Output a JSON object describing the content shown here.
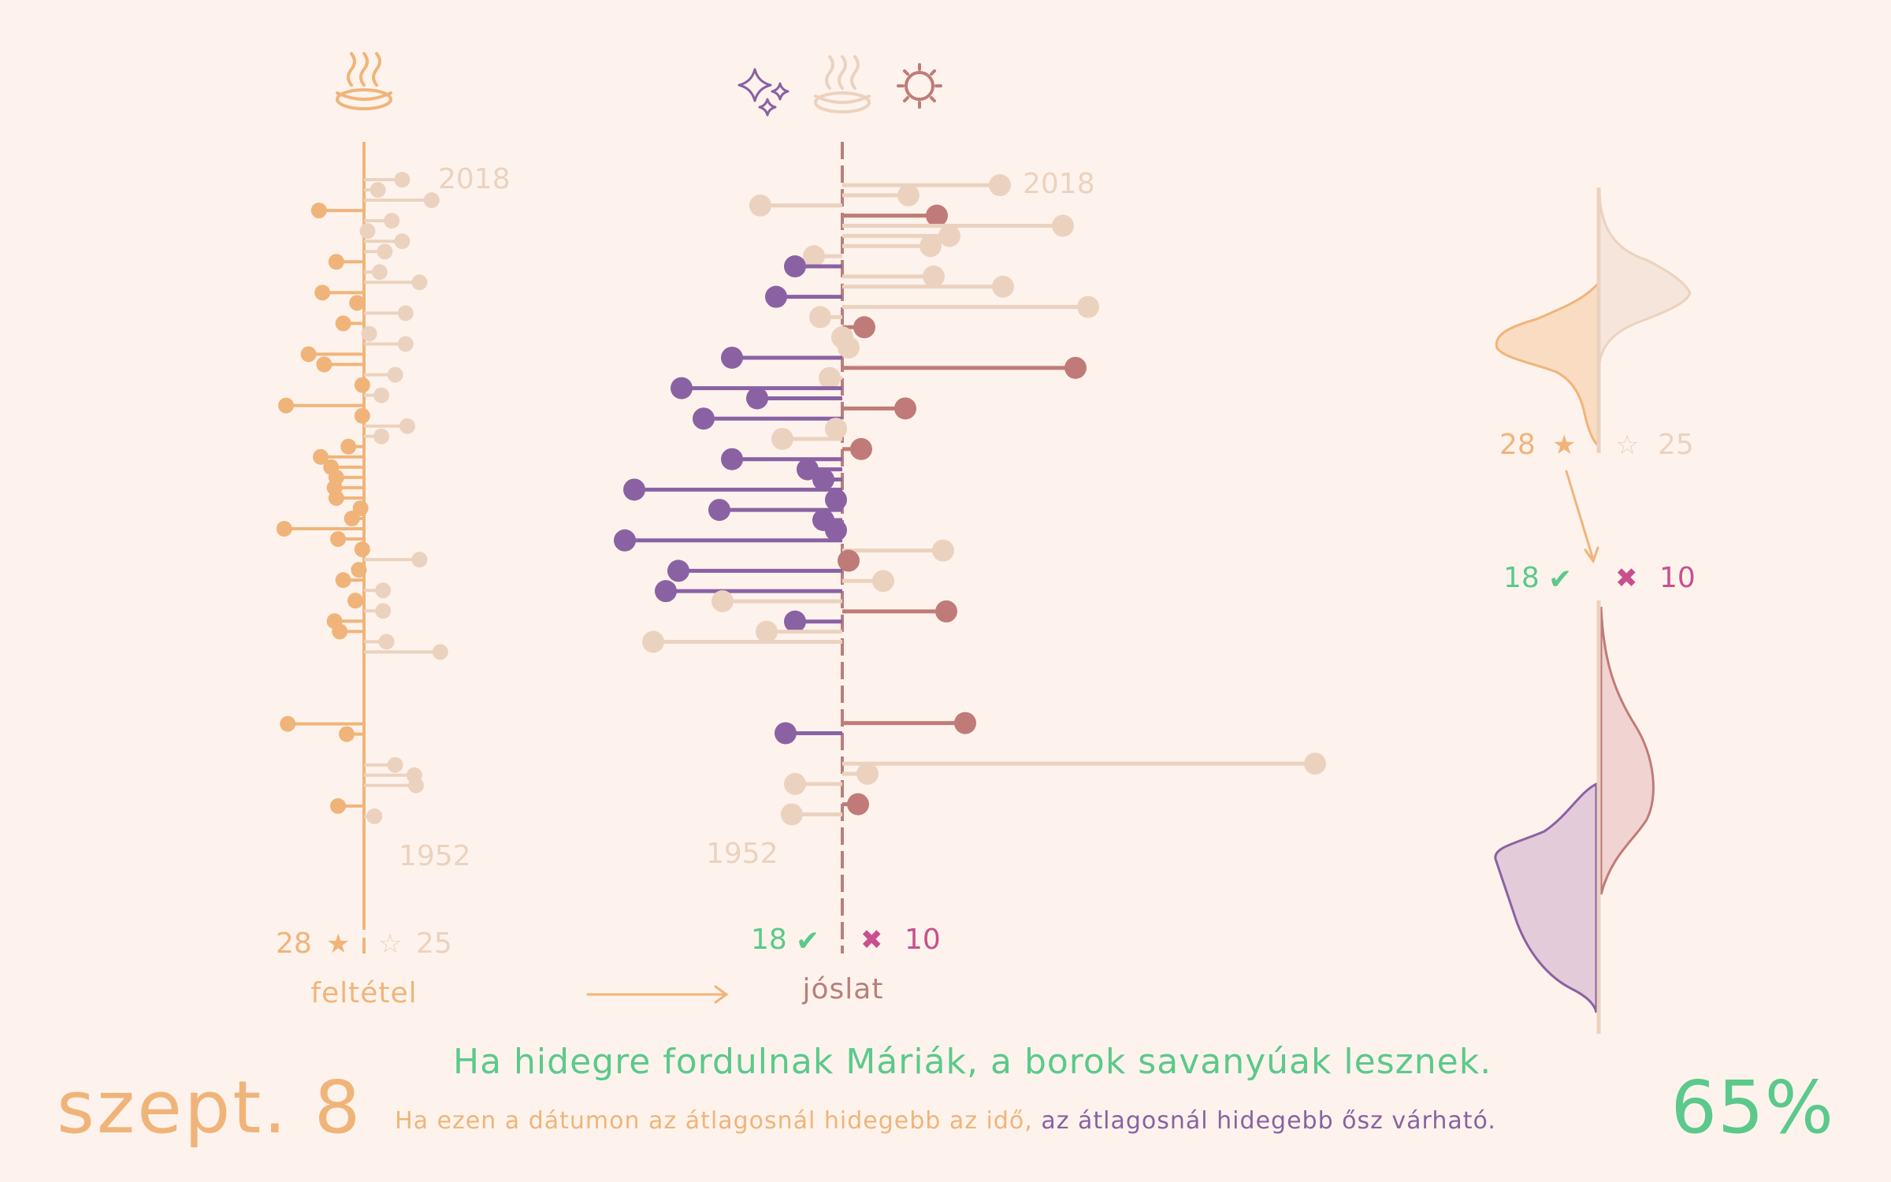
{
  "date": "szept. 8",
  "percent": "65%",
  "saying": "Ha hidegre fordulnak Máriák, a borok savanyúak lesznek.",
  "explanation": {
    "condition": "Ha ezen a dátumon az átlagosnál hidegebb az idő,",
    "result": "az átlagosnál hidegebb ősz várható."
  },
  "labels": {
    "condition": "feltétel",
    "prediction": "jóslat"
  },
  "stats": {
    "cond_yes": "28",
    "cond_no": "25",
    "correct": "18",
    "wrong": "10",
    "star_filled": "★",
    "star_empty": "☆",
    "check": "✔",
    "cross": "✖"
  },
  "year_labels": {
    "top": "2018",
    "bottom": "1952"
  },
  "icons": [
    "steaming-bowl-icon",
    "sparkles-icon",
    "steaming-bowl-icon",
    "sun-icon"
  ],
  "colors": {
    "background": "#fdf3ec",
    "condition": "#f0b47a",
    "condition_faded": "#ebd2bf",
    "cold": "#8a62a3",
    "warm": "#c07b78",
    "correct": "#5bc98b",
    "wrong": "#c94f8e",
    "axis_pred": "#b87f7c"
  },
  "chart_data": [
    {
      "type": "lollipop",
      "name": "feltétel",
      "x_unit": "temperature anomaly (value 0 = average)",
      "y_range": [
        1952,
        2018
      ],
      "x_range": [
        -6,
        6
      ],
      "points": [
        {
          "year": 2018,
          "value": 2.2
        },
        {
          "year": 2017,
          "value": 0.8
        },
        {
          "year": 2016,
          "value": 3.9
        },
        {
          "year": 2015,
          "value": -2.6
        },
        {
          "year": 2014,
          "value": 1.6
        },
        {
          "year": 2013,
          "value": 0.2
        },
        {
          "year": 2012,
          "value": 2.2
        },
        {
          "year": 2011,
          "value": 1.2
        },
        {
          "year": 2010,
          "value": -1.6
        },
        {
          "year": 2009,
          "value": 0.9
        },
        {
          "year": 2008,
          "value": 3.2
        },
        {
          "year": 2007,
          "value": -2.4
        },
        {
          "year": 2006,
          "value": -0.4
        },
        {
          "year": 2005,
          "value": 2.4
        },
        {
          "year": 2004,
          "value": -1.2
        },
        {
          "year": 2003,
          "value": 0.3
        },
        {
          "year": 2002,
          "value": 2.4
        },
        {
          "year": 2001,
          "value": -3.2
        },
        {
          "year": 2000,
          "value": -2.3
        },
        {
          "year": 1999,
          "value": 1.8
        },
        {
          "year": 1998,
          "value": -0.1
        },
        {
          "year": 1997,
          "value": 1.0
        },
        {
          "year": 1996,
          "value": -4.5
        },
        {
          "year": 1995,
          "value": -0.1
        },
        {
          "year": 1994,
          "value": 2.5
        },
        {
          "year": 1993,
          "value": 1.0
        },
        {
          "year": 1992,
          "value": -0.9
        },
        {
          "year": 1991,
          "value": -2.5
        },
        {
          "year": 1990,
          "value": -1.9
        },
        {
          "year": 1989,
          "value": -1.6
        },
        {
          "year": 1988,
          "value": -1.7
        },
        {
          "year": 1987,
          "value": -1.6
        },
        {
          "year": 1986,
          "value": -0.2
        },
        {
          "year": 1985,
          "value": -0.7
        },
        {
          "year": 1984,
          "value": -4.6
        },
        {
          "year": 1983,
          "value": -1.5
        },
        {
          "year": 1982,
          "value": -0.1
        },
        {
          "year": 1981,
          "value": 3.2
        },
        {
          "year": 1980,
          "value": -0.3
        },
        {
          "year": 1979,
          "value": -1.2
        },
        {
          "year": 1978,
          "value": 1.1
        },
        {
          "year": 1977,
          "value": -0.5
        },
        {
          "year": 1976,
          "value": 1.1
        },
        {
          "year": 1975,
          "value": -1.7
        },
        {
          "year": 1974,
          "value": -1.4
        },
        {
          "year": 1973,
          "value": 1.3
        },
        {
          "year": 1972,
          "value": 4.4
        },
        {
          "year": 1965,
          "value": -4.4
        },
        {
          "year": 1964,
          "value": -1.0
        },
        {
          "year": 1961,
          "value": 1.8
        },
        {
          "year": 1960,
          "value": 2.9
        },
        {
          "year": 1959,
          "value": 3.0
        },
        {
          "year": 1957,
          "value": -1.5
        },
        {
          "year": 1956,
          "value": 0.6
        }
      ]
    },
    {
      "type": "lollipop",
      "name": "jóslat",
      "x_unit": "autumn temperature anomaly (value 0 = average)",
      "y_range": [
        1952,
        2018
      ],
      "x_range": [
        -7,
        16
      ],
      "points": [
        {
          "year": 2018,
          "value": 5.0,
          "cond": false
        },
        {
          "year": 2017,
          "value": 2.1,
          "cond": false
        },
        {
          "year": 2016,
          "value": -2.6,
          "cond": false
        },
        {
          "year": 2015,
          "value": 3.0,
          "cond": true
        },
        {
          "year": 2014,
          "value": 7.0,
          "cond": false
        },
        {
          "year": 2013,
          "value": 3.4,
          "cond": false
        },
        {
          "year": 2012,
          "value": 2.8,
          "cond": false
        },
        {
          "year": 2011,
          "value": -0.9,
          "cond": false
        },
        {
          "year": 2010,
          "value": -1.5,
          "cond": true
        },
        {
          "year": 2009,
          "value": 2.9,
          "cond": false
        },
        {
          "year": 2008,
          "value": 5.1,
          "cond": false
        },
        {
          "year": 2007,
          "value": -2.1,
          "cond": true
        },
        {
          "year": 2006,
          "value": 7.8,
          "cond": false
        },
        {
          "year": 2005,
          "value": -0.7,
          "cond": false
        },
        {
          "year": 2004,
          "value": 0.7,
          "cond": true
        },
        {
          "year": 2003,
          "value": 0.0,
          "cond": false
        },
        {
          "year": 2002,
          "value": 0.2,
          "cond": false
        },
        {
          "year": 2001,
          "value": -3.5,
          "cond": true
        },
        {
          "year": 2000,
          "value": 7.4,
          "cond": true
        },
        {
          "year": 1999,
          "value": -0.4,
          "cond": false
        },
        {
          "year": 1998,
          "value": -5.1,
          "cond": true
        },
        {
          "year": 1997,
          "value": -2.7,
          "cond": true
        },
        {
          "year": 1996,
          "value": 2.0,
          "cond": true
        },
        {
          "year": 1995,
          "value": -4.4,
          "cond": true
        },
        {
          "year": 1994,
          "value": -0.2,
          "cond": false
        },
        {
          "year": 1993,
          "value": -1.9,
          "cond": false
        },
        {
          "year": 1992,
          "value": 0.6,
          "cond": true
        },
        {
          "year": 1991,
          "value": -3.5,
          "cond": true
        },
        {
          "year": 1990,
          "value": -1.1,
          "cond": true
        },
        {
          "year": 1989,
          "value": -0.6,
          "cond": true
        },
        {
          "year": 1988,
          "value": -6.6,
          "cond": true
        },
        {
          "year": 1987,
          "value": -0.2,
          "cond": true
        },
        {
          "year": 1986,
          "value": -3.9,
          "cond": true
        },
        {
          "year": 1985,
          "value": -0.6,
          "cond": true
        },
        {
          "year": 1984,
          "value": -0.2,
          "cond": true
        },
        {
          "year": 1983,
          "value": -6.9,
          "cond": true
        },
        {
          "year": 1982,
          "value": 3.2,
          "cond": false
        },
        {
          "year": 1981,
          "value": 0.2,
          "cond": true
        },
        {
          "year": 1980,
          "value": -5.2,
          "cond": true
        },
        {
          "year": 1979,
          "value": 1.3,
          "cond": false
        },
        {
          "year": 1978,
          "value": -5.6,
          "cond": true
        },
        {
          "year": 1977,
          "value": -3.8,
          "cond": false
        },
        {
          "year": 1976,
          "value": 3.3,
          "cond": true
        },
        {
          "year": 1975,
          "value": -1.5,
          "cond": true
        },
        {
          "year": 1974,
          "value": -2.4,
          "cond": false
        },
        {
          "year": 1973,
          "value": -6.0,
          "cond": false
        },
        {
          "year": 1965,
          "value": 3.9,
          "cond": true
        },
        {
          "year": 1964,
          "value": -1.8,
          "cond": true
        },
        {
          "year": 1961,
          "value": 15.0,
          "cond": false
        },
        {
          "year": 1960,
          "value": 0.8,
          "cond": false
        },
        {
          "year": 1959,
          "value": -1.5,
          "cond": false
        },
        {
          "year": 1957,
          "value": 0.5,
          "cond": true
        },
        {
          "year": 1956,
          "value": -1.6,
          "cond": false
        }
      ]
    }
  ]
}
